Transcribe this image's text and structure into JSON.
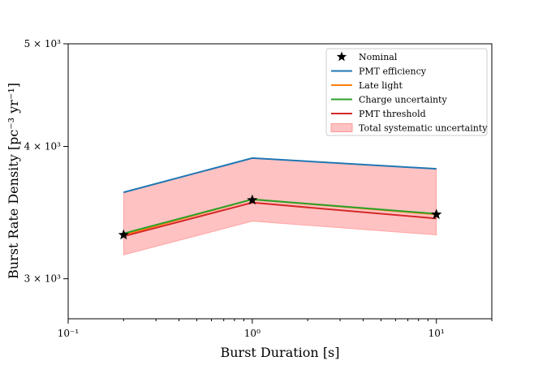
{
  "chart_data": {
    "type": "line",
    "title": "",
    "xscale": "log",
    "yscale": "log",
    "xlabel": "Burst Duration [s]",
    "ylabel": "Burst Rate Density [pc⁻³ yr⁻¹]",
    "xlim": [
      0.1,
      20
    ],
    "ylim": [
      2750,
      5000
    ],
    "x": [
      0.2,
      1,
      10
    ],
    "x_tick_labels": [
      "10⁻¹",
      "10⁰",
      "10¹"
    ],
    "y_tick_labels": [
      "3 × 10³",
      "4 × 10³",
      "5 × 10³"
    ],
    "nominal": {
      "name": "Nominal",
      "values": [
        3300,
        3560,
        3450
      ],
      "marker": "star",
      "color": "#000000"
    },
    "series": [
      {
        "name": "PMT efficiency",
        "values": [
          3620,
          3900,
          3810
        ],
        "color": "#1f77b4"
      },
      {
        "name": "Late light",
        "values": [
          3300,
          3565,
          3450
        ],
        "color": "#ff7f0e"
      },
      {
        "name": "Charge uncertainty",
        "values": [
          3310,
          3565,
          3455
        ],
        "color": "#2ca02c"
      },
      {
        "name": "PMT threshold",
        "values": [
          3290,
          3540,
          3420
        ],
        "color": "#d62728"
      }
    ],
    "band": {
      "name": "Total systematic uncertainty",
      "lower": [
        3160,
        3400,
        3300
      ],
      "upper": [
        3620,
        3900,
        3810
      ],
      "color": "#ff9999"
    },
    "legend_position": "top-right",
    "grid": false
  }
}
